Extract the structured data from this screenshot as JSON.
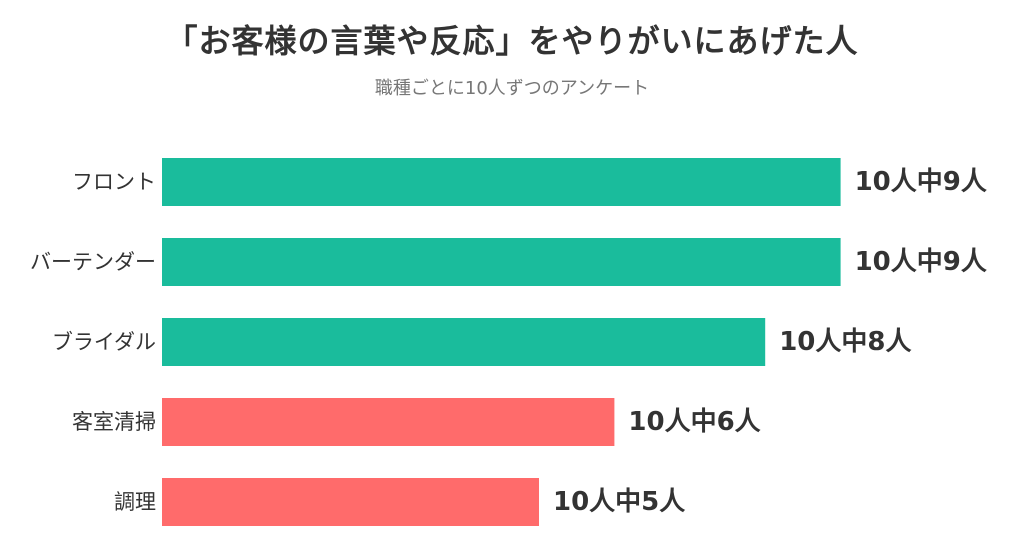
{
  "title": "「お客様の言葉や反応」をやりがいにあげた人",
  "subtitle": "職種ごとに10人ずつのアンケート",
  "chart_data": {
    "type": "bar",
    "orientation": "horizontal",
    "title": "「お客様の言葉や反応」をやりがいにあげた人",
    "subtitle": "職種ごとに10人ずつのアンケート",
    "categories": [
      "フロント",
      "バーテンダー",
      "ブライダル",
      "客室清掃",
      "調理"
    ],
    "values": [
      9,
      9,
      8,
      6,
      5
    ],
    "value_labels": [
      "10人中9人",
      "10人中9人",
      "10人中8人",
      "10人中6人",
      "10人中5人"
    ],
    "xlim": [
      0,
      10
    ],
    "grid": false,
    "legend": "none",
    "bar_colors": [
      "#1ABC9C",
      "#1ABC9C",
      "#1ABC9C",
      "#FF6B6B",
      "#FF6B6B"
    ]
  }
}
